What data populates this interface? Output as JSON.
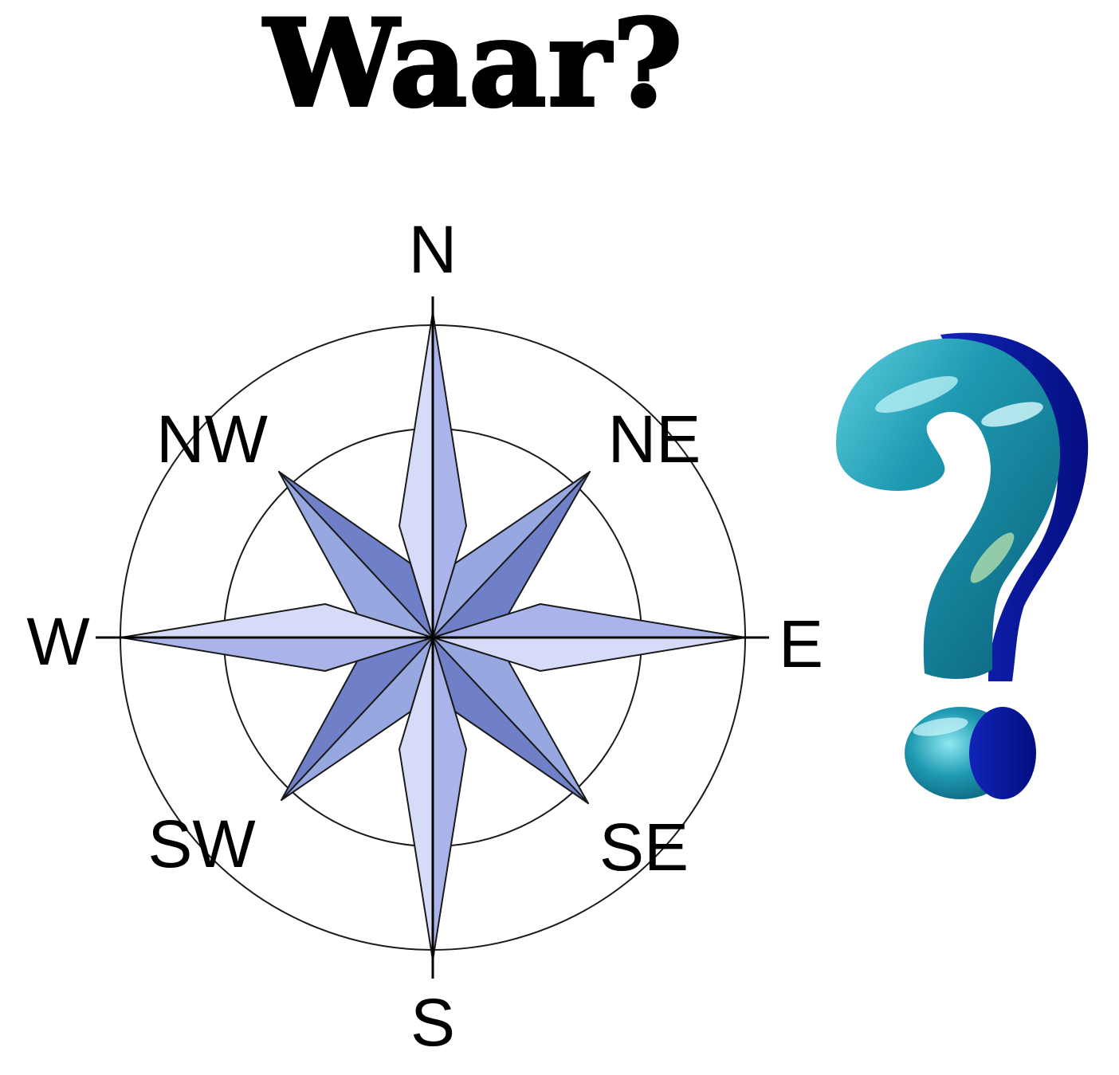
{
  "title": "Waar?",
  "compass": {
    "labels": {
      "n": "N",
      "ne": "NE",
      "e": "E",
      "se": "SE",
      "s": "S",
      "sw": "SW",
      "w": "W",
      "nw": "NW"
    },
    "colors": {
      "cardinal_light": "#d6dcf7",
      "cardinal_dark": "#aab4ea",
      "diagonal_light": "#97a7e0",
      "diagonal_dark": "#6f80c8",
      "outline": "#1a1a1a"
    }
  },
  "question_mark": {
    "icon": "question-mark-icon",
    "colors": {
      "face": "#1f8fa8",
      "highlight": "#7fe3ee",
      "side": "#0a1a9a"
    }
  }
}
